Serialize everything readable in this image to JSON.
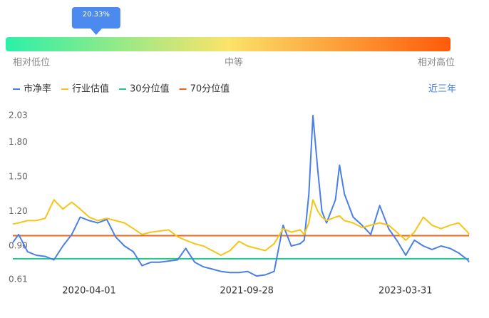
{
  "gauge": {
    "value": 20.33,
    "value_label": "20.33%",
    "lim": [
      0,
      100
    ],
    "low_label": "相对低位",
    "mid_label": "中等",
    "high_label": "相对高位"
  },
  "range_button": "近三年",
  "chart_data": {
    "type": "line",
    "x": [
      "2019-07-12",
      "2019-08-01",
      "2019-09-01",
      "2019-10-01",
      "2019-11-01",
      "2019-12-01",
      "2020-01-01",
      "2020-02-01",
      "2020-03-01",
      "2020-04-01",
      "2020-05-01",
      "2020-06-01",
      "2020-07-01",
      "2020-08-01",
      "2020-09-01",
      "2020-10-01",
      "2020-11-01",
      "2020-12-01",
      "2021-01-01",
      "2021-02-01",
      "2021-03-01",
      "2021-04-01",
      "2021-05-01",
      "2021-06-01",
      "2021-07-01",
      "2021-08-01",
      "2021-09-01",
      "2021-10-01",
      "2021-11-01",
      "2021-12-01",
      "2022-01-01",
      "2022-02-01",
      "2022-03-01",
      "2022-04-01",
      "2022-04-15",
      "2022-05-01",
      "2022-05-15",
      "2022-06-01",
      "2022-06-15",
      "2022-07-01",
      "2022-08-01",
      "2022-08-15",
      "2022-09-01",
      "2022-10-01",
      "2022-11-01",
      "2022-12-01",
      "2023-01-01",
      "2023-02-01",
      "2023-03-01",
      "2023-04-01",
      "2023-05-01",
      "2023-06-01",
      "2023-07-01",
      "2023-08-01",
      "2023-09-01",
      "2023-10-01",
      "2023-11-01",
      "2023-11-06"
    ],
    "series": [
      {
        "name": "市净率",
        "color": "#4a7fe8",
        "values": [
          0.93,
          1.0,
          0.85,
          0.82,
          0.81,
          0.78,
          0.9,
          1.0,
          1.15,
          1.12,
          1.1,
          1.13,
          0.98,
          0.9,
          0.85,
          0.73,
          0.76,
          0.76,
          0.77,
          0.78,
          0.88,
          0.76,
          0.72,
          0.7,
          0.68,
          0.67,
          0.67,
          0.68,
          0.64,
          0.65,
          0.68,
          1.08,
          0.9,
          0.92,
          0.95,
          1.35,
          2.03,
          1.55,
          1.2,
          1.1,
          1.3,
          1.6,
          1.35,
          1.15,
          1.08,
          1.0,
          1.25,
          1.05,
          0.95,
          0.82,
          0.95,
          0.9,
          0.87,
          0.9,
          0.88,
          0.84,
          0.78,
          0.76
        ]
      },
      {
        "name": "行业估值",
        "color": "#f5c518",
        "values": [
          1.09,
          1.1,
          1.12,
          1.12,
          1.14,
          1.3,
          1.22,
          1.28,
          1.22,
          1.15,
          1.12,
          1.14,
          1.12,
          1.1,
          1.05,
          1.0,
          1.02,
          1.03,
          1.04,
          0.98,
          0.95,
          0.92,
          0.9,
          0.86,
          0.82,
          0.86,
          0.94,
          0.9,
          0.88,
          0.86,
          0.92,
          1.05,
          1.02,
          1.04,
          1.0,
          1.1,
          1.3,
          1.2,
          1.15,
          1.12,
          1.15,
          1.16,
          1.12,
          1.1,
          1.06,
          1.08,
          1.1,
          1.08,
          1.02,
          0.95,
          1.02,
          1.15,
          1.08,
          1.05,
          1.08,
          1.1,
          1.02,
          1.0
        ]
      }
    ],
    "reference_lines": [
      {
        "name": "30分位值",
        "color": "#1ec98b",
        "value": 0.79
      },
      {
        "name": "70分位值",
        "color": "#f0641e",
        "value": 0.99
      }
    ],
    "xlim": [
      "2019-07-12",
      "2023-11-06"
    ],
    "xticks": [
      "2020-04-01",
      "2021-09-28",
      "2023-03-31"
    ],
    "ylim": [
      0.61,
      2.03
    ],
    "yticks": [
      0.61,
      {
        "value": 0.9,
        "label": "0.90"
      },
      {
        "value": 1.2,
        "label": "1.20"
      },
      {
        "value": 1.5,
        "label": "1.50"
      },
      {
        "value": 1.8,
        "label": "1.80"
      },
      2.03
    ],
    "grid": false
  }
}
